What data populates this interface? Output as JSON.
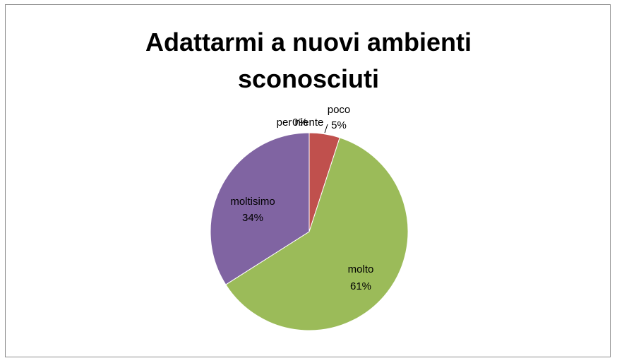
{
  "chart_data": {
    "type": "pie",
    "title_lines": [
      "Adattarmi a nuovi ambienti",
      "sconosciuti"
    ],
    "slices": [
      {
        "label": "per niente",
        "value": 0,
        "pct_label": "0%",
        "color": "#4f81bd"
      },
      {
        "label": "poco",
        "value": 5,
        "pct_label": "5%",
        "color": "#c0504d"
      },
      {
        "label": "molto",
        "value": 61,
        "pct_label": "61%",
        "color": "#9bbb59"
      },
      {
        "label": "moltisimo",
        "value": 34,
        "pct_label": "34%",
        "color": "#8064a2"
      }
    ],
    "legend": "none"
  }
}
